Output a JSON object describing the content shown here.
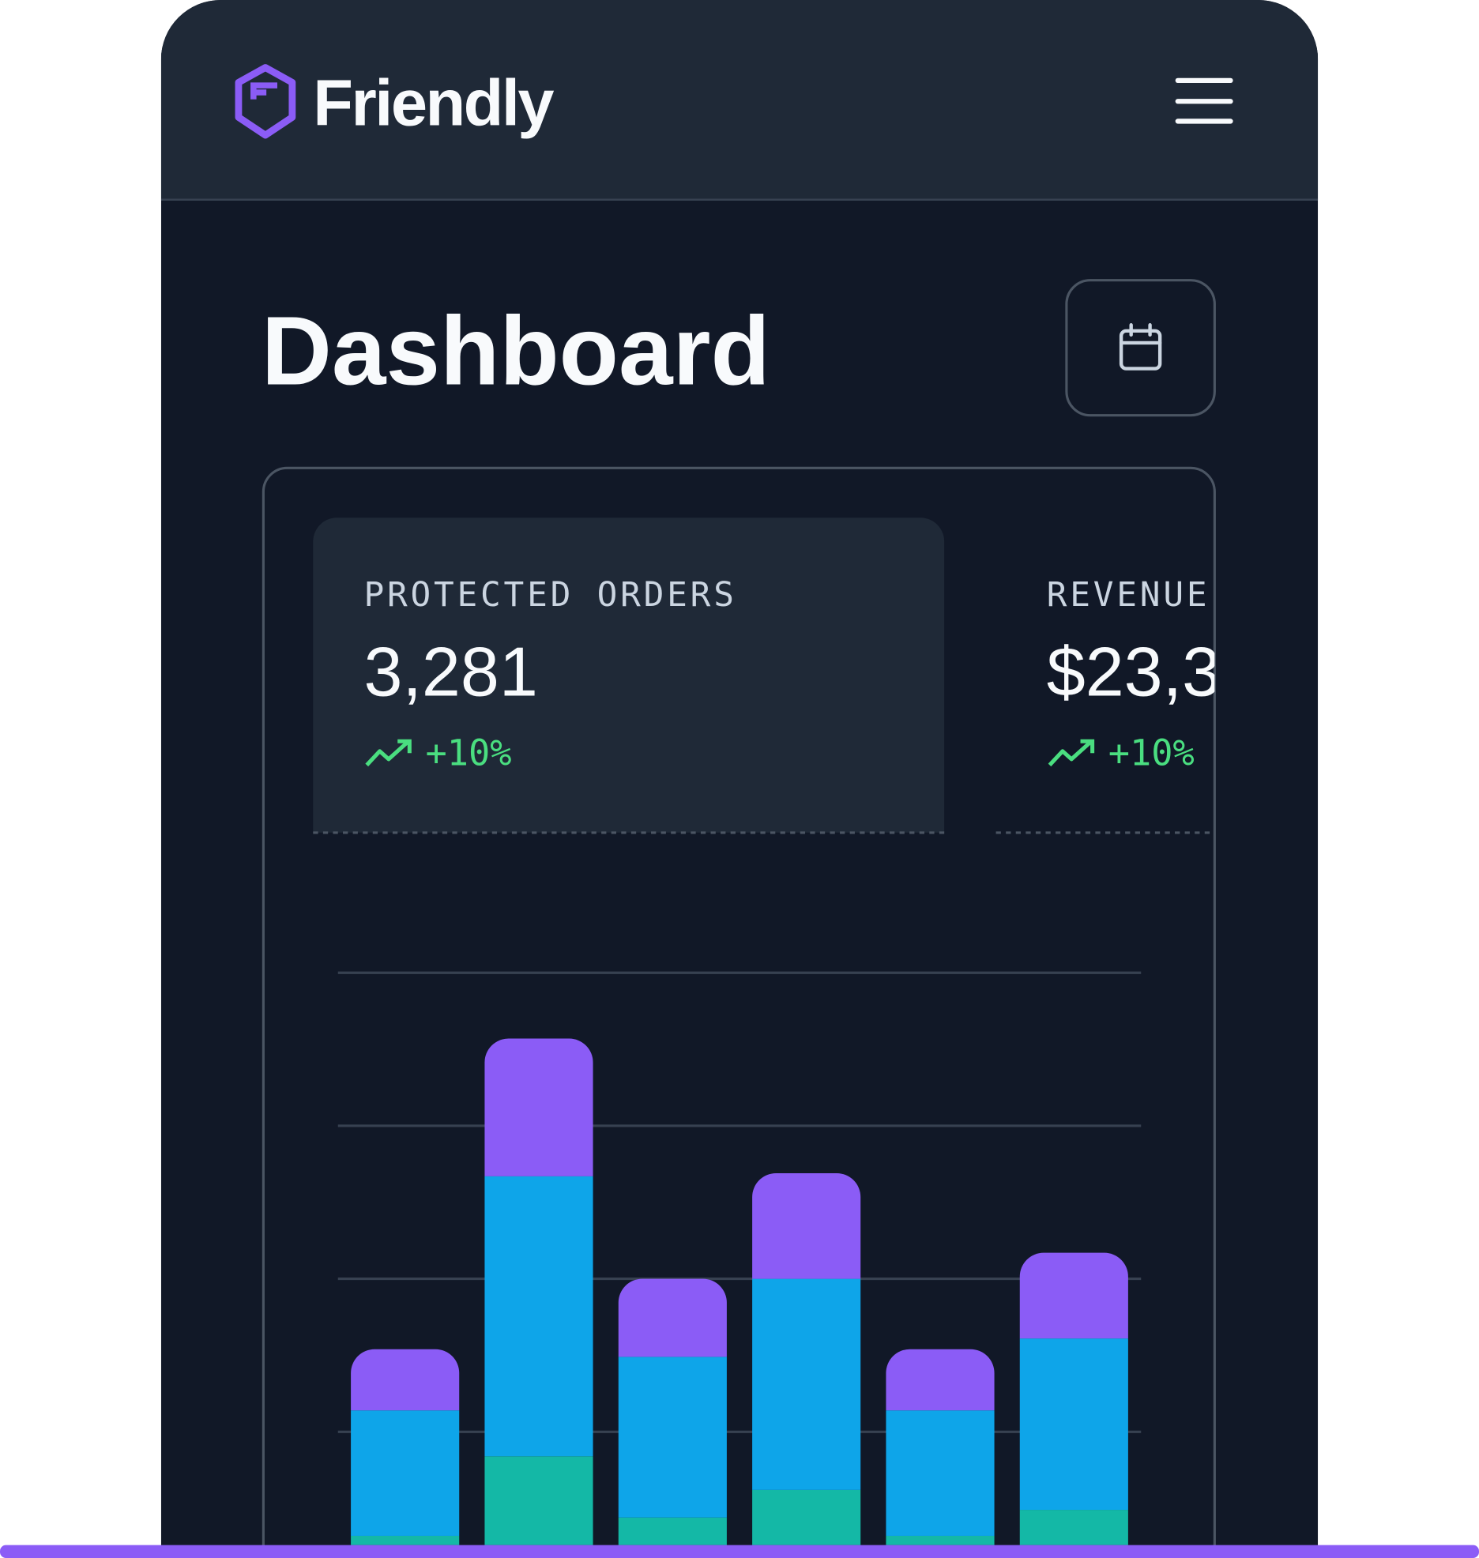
{
  "header": {
    "brand": "Friendly"
  },
  "title": "Dashboard",
  "stats": [
    {
      "label": "PROTECTED ORDERS",
      "value": "3,281",
      "change": "+10%"
    },
    {
      "label": "REVENUE",
      "value": "$23,3",
      "change": "+10%"
    }
  ],
  "chart_data": {
    "type": "bar",
    "stacked": true,
    "categories": [
      null,
      null,
      null,
      null,
      null,
      null
    ],
    "series": [
      {
        "color": "#14b8a6",
        "values": [
          3.2,
          8.4,
          4.4,
          6.2,
          3.2,
          4.9
        ]
      },
      {
        "color": "#0ea5e9",
        "values": [
          8.2,
          18.3,
          10.5,
          13.8,
          8.2,
          11.2
        ]
      },
      {
        "color": "#8b5cf6",
        "values": [
          4.0,
          9.0,
          5.1,
          6.9,
          4.0,
          5.6
        ]
      }
    ],
    "ylim": [
      0,
      40
    ],
    "yticks": [
      10,
      20,
      30,
      40
    ],
    "grid": true
  }
}
